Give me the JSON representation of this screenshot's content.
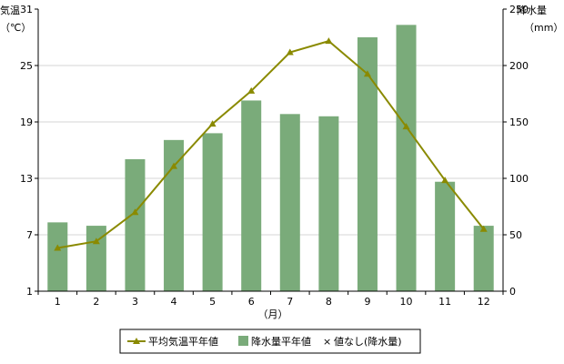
{
  "chart_data": {
    "type": "bar+line",
    "categories": [
      "1",
      "2",
      "3",
      "4",
      "5",
      "6",
      "7",
      "8",
      "9",
      "10",
      "11",
      "12"
    ],
    "xlabel": "（月）",
    "left_axis": {
      "label_line1": "気温",
      "label_line2": "（℃）",
      "ylim": [
        1,
        31
      ],
      "ticks": [
        1,
        7,
        13,
        19,
        25,
        31
      ]
    },
    "right_axis": {
      "label_line1": "降水量",
      "label_line2": "（mm）",
      "ylim": [
        0,
        250
      ],
      "ticks": [
        0,
        50,
        100,
        150,
        200,
        250
      ]
    },
    "series": [
      {
        "name": "平均気温平年値",
        "kind": "line",
        "axis": "left",
        "color": "#8a8a00",
        "values": [
          5.6,
          6.3,
          9.4,
          14.3,
          18.8,
          22.3,
          26.4,
          27.6,
          24.1,
          18.5,
          12.8,
          7.6
        ]
      },
      {
        "name": "降水量平年値",
        "kind": "bar",
        "axis": "right",
        "color": "#7aab7a",
        "values": [
          61,
          58,
          117,
          134,
          140,
          169,
          157,
          155,
          225,
          236,
          97,
          58
        ]
      }
    ],
    "legend": {
      "placement": "bottom-center",
      "items": [
        "平均気温平年値",
        "降水量平年値",
        "値なし(降水量)"
      ],
      "missing_marker": "×"
    },
    "grid": "horizontal"
  }
}
